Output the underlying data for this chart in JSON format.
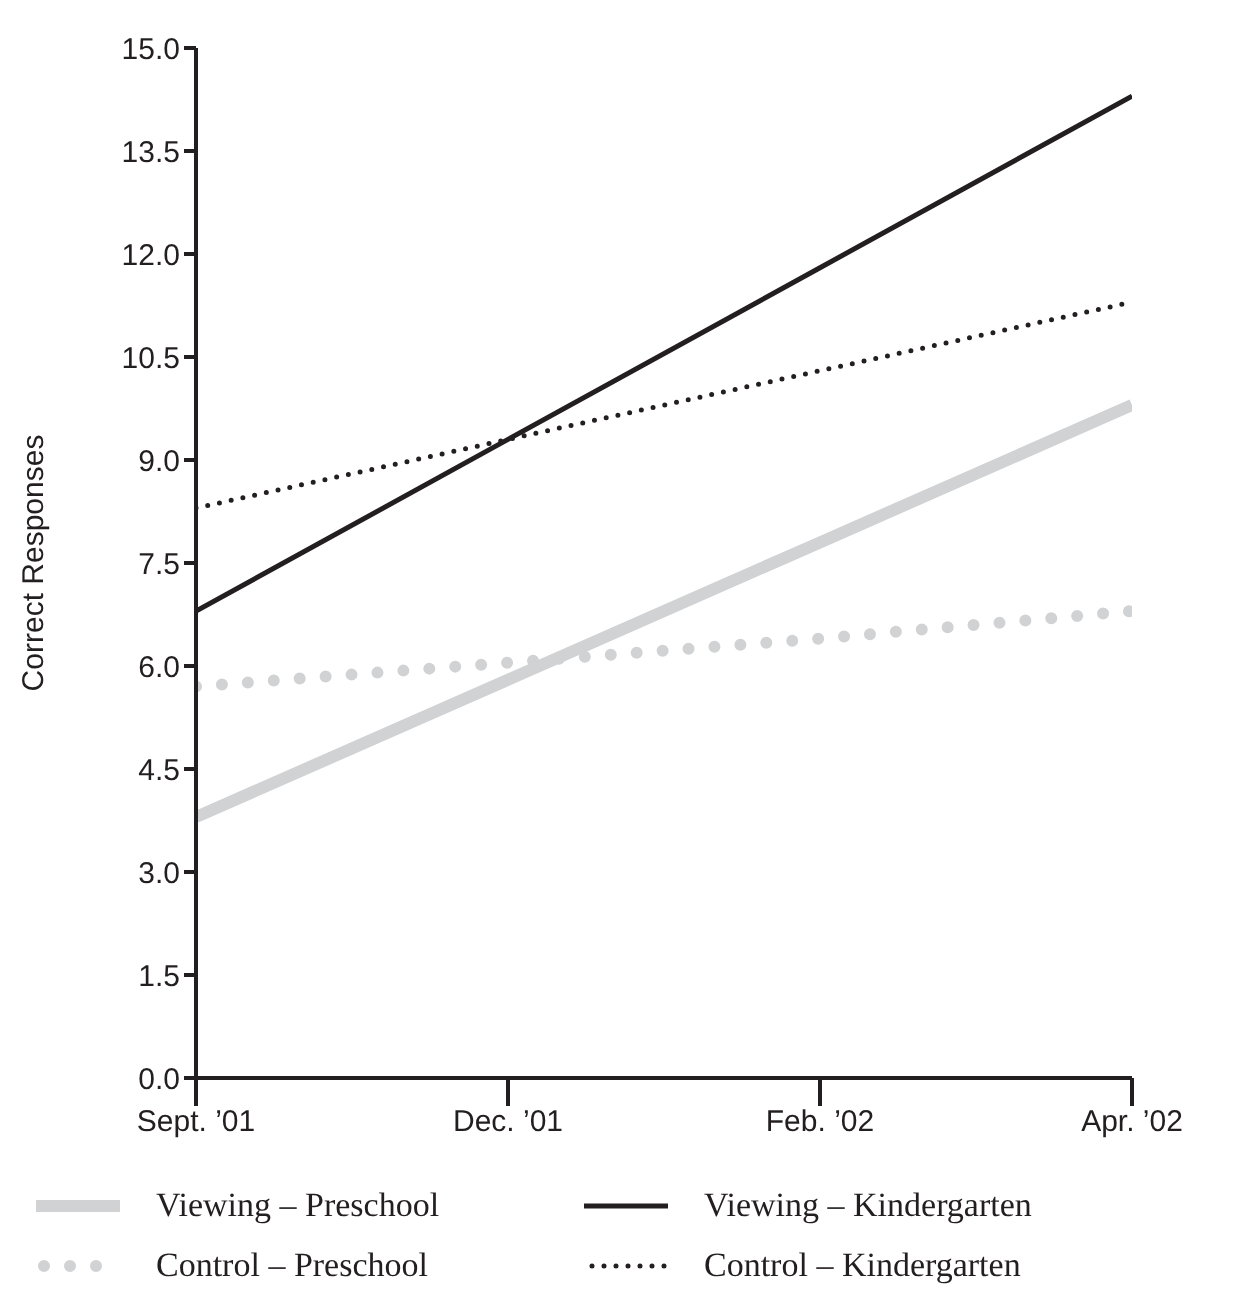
{
  "chart_data": {
    "type": "line",
    "ylabel": "Correct Responses",
    "categories": [
      "Sept. ’01",
      "Dec. ’01",
      "Feb. ’02",
      "Apr. ’02"
    ],
    "series": [
      {
        "name": "Viewing – Preschool",
        "color": "#d1d2d4",
        "line_style": "solid",
        "values": [
          3.8,
          5.8,
          7.8,
          9.8
        ]
      },
      {
        "name": "Viewing – Kindergarten",
        "color": "#231f20",
        "line_style": "solid",
        "values": [
          6.8,
          9.3,
          11.8,
          14.3
        ]
      },
      {
        "name": "Control – Preschool",
        "color": "#d1d2d4",
        "line_style": "dotted",
        "values": [
          5.7,
          6.05,
          6.4,
          6.8
        ]
      },
      {
        "name": "Control – Kindergarten",
        "color": "#231f20",
        "line_style": "dotted",
        "values": [
          8.3,
          9.3,
          10.3,
          11.3
        ]
      }
    ],
    "ylim": [
      0,
      15
    ],
    "yticks": [
      {
        "value": 0,
        "label": "0.0"
      },
      1.5,
      {
        "value": 3,
        "label": "3.0"
      },
      4.5,
      {
        "value": 6,
        "label": "6.0"
      },
      7.5,
      {
        "value": 9,
        "label": "9.0"
      },
      10.5,
      {
        "value": 12,
        "label": "12.0"
      },
      13.5,
      {
        "value": 15,
        "label": "15.0"
      }
    ],
    "grid": false,
    "legend": "bottom",
    "marker": "none"
  }
}
